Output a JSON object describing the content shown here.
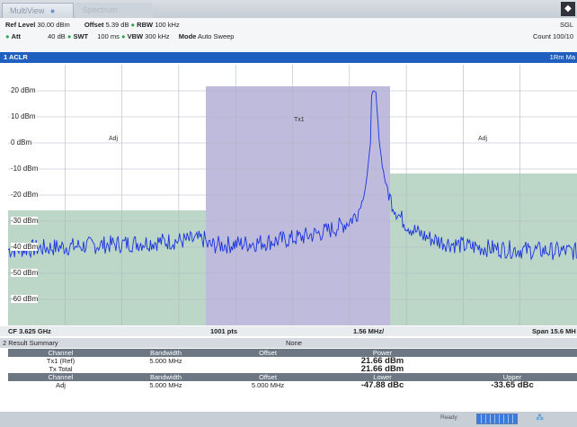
{
  "tabs": [
    {
      "label": "MultiView",
      "close": "●"
    },
    {
      "label": "Spectrum"
    }
  ],
  "header": {
    "ref_level_label": "Ref Level",
    "ref_level_value": "30.00 dBm",
    "offset_label": "Offset",
    "offset_value": "5.39 dB",
    "rbw_label": "RBW",
    "rbw_value": "100 kHz",
    "att_label": "Att",
    "att_value": "40 dB",
    "swt_label": "SWT",
    "swt_value": "100 ms",
    "vbw_label": "VBW",
    "vbw_value": "300 kHz",
    "mode_label": "Mode",
    "mode_value": "Auto Sweep",
    "sgl": "SGL",
    "count": "Count 100/10"
  },
  "pane": {
    "title": "1 ACLR",
    "trace": "1Rm Ma"
  },
  "plot": {
    "y_ticks": [
      "20 dBm",
      "10 dBm",
      "0 dBm",
      "-10 dBm",
      "-20 dBm",
      "-30 dBm",
      "-40 dBm",
      "-50 dBm",
      "-60 dBm"
    ],
    "channel_labels": {
      "left": "Adj",
      "center": "Tx1",
      "right": "Adj"
    },
    "colors": {
      "trace": "#1a33e0",
      "tx_band": "#b3afd6",
      "adj_band": "#bcd6c8",
      "grid": "#b0b8c2"
    }
  },
  "footer": {
    "cf": "CF 3.625 GHz",
    "pts": "1001 pts",
    "div": "1.56 MHz/",
    "span": "Span 15.6 MH"
  },
  "result_summary": {
    "title": "2 Result Summary",
    "mode": "None",
    "header1": [
      "Channel",
      "Bandwidth",
      "Offset",
      "Power"
    ],
    "rows1": [
      {
        "channel": "Tx1 (Ref)",
        "bandwidth": "5.000 MHz",
        "offset": "",
        "power": "21.66 dBm"
      },
      {
        "channel": "Tx Total",
        "bandwidth": "",
        "offset": "",
        "power": "21.66 dBm"
      }
    ],
    "header2": [
      "Channel",
      "Bandwidth",
      "Offset",
      "Lower",
      "Upper"
    ],
    "rows2": [
      {
        "channel": "Adj",
        "bandwidth": "5.000 MHz",
        "offset": "5.000 MHz",
        "lower": "-47.88 dBc",
        "upper": "-33.65 dBc"
      }
    ]
  },
  "status": {
    "ready": "Ready"
  }
}
